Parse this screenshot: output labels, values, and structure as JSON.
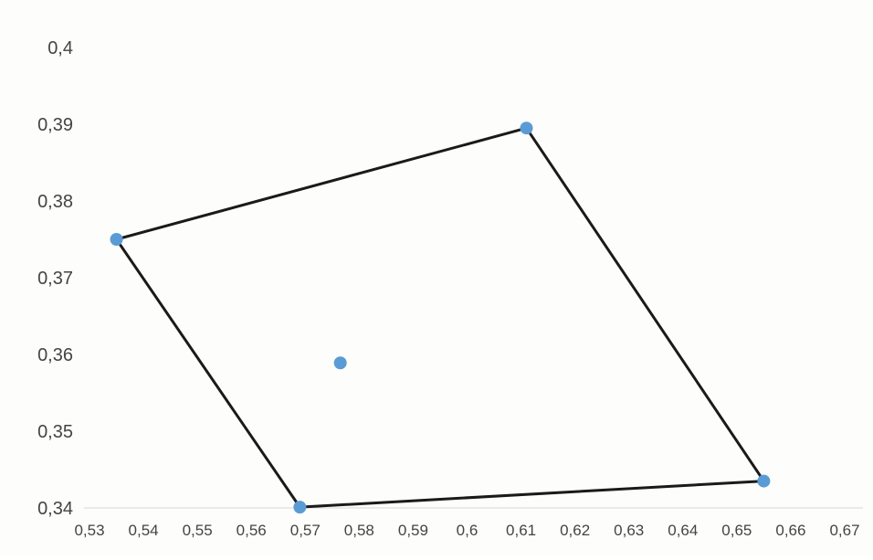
{
  "chart_data": {
    "type": "scatter",
    "title": "",
    "xlabel": "",
    "ylabel": "",
    "xlim": [
      0.53,
      0.67
    ],
    "ylim": [
      0.34,
      0.4
    ],
    "x_ticks": [
      0.53,
      0.54,
      0.55,
      0.56,
      0.57,
      0.58,
      0.59,
      0.6,
      0.61,
      0.62,
      0.63,
      0.64,
      0.65,
      0.66,
      0.67
    ],
    "x_tick_labels": [
      "0,53",
      "0,54",
      "0,55",
      "0,56",
      "0,57",
      "0,58",
      "0,59",
      "0,6",
      "0,61",
      "0,62",
      "0,63",
      "0,64",
      "0,65",
      "0,66",
      "0,67"
    ],
    "y_ticks": [
      0.34,
      0.35,
      0.36,
      0.37,
      0.38,
      0.39,
      0.4
    ],
    "y_tick_labels": [
      "0,34",
      "0,35",
      "0,36",
      "0,37",
      "0,38",
      "0,39",
      "0,4"
    ],
    "grid": false,
    "legend": "none",
    "series": [
      {
        "kind": "closed-polygon",
        "line_color": "#1a1a1a",
        "marker_color": "#5b9bd5",
        "x": [
          0.535,
          0.611,
          0.655,
          0.569
        ],
        "y": [
          0.375,
          0.3895,
          0.3435,
          0.3401
        ]
      },
      {
        "kind": "points",
        "marker_color": "#5b9bd5",
        "x": [
          0.5765
        ],
        "y": [
          0.3589
        ]
      }
    ]
  }
}
